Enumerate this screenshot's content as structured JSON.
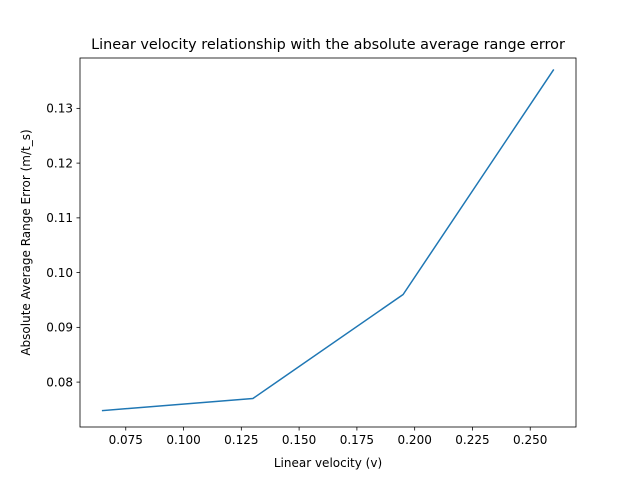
{
  "chart_data": {
    "type": "line",
    "title": "Linear velocity relationship with the absolute average range error",
    "xlabel": "Linear velocity (v)",
    "ylabel": "Absolute Average Range Error (m/t_s)",
    "xlim": [
      0.0552,
      0.2698
    ],
    "ylim": [
      0.0718,
      0.1392
    ],
    "xticks": [
      0.075,
      0.1,
      0.125,
      0.15,
      0.175,
      0.2,
      0.225,
      0.25
    ],
    "xtick_labels": [
      "0.075",
      "0.100",
      "0.125",
      "0.150",
      "0.175",
      "0.200",
      "0.225",
      "0.250"
    ],
    "yticks": [
      0.08,
      0.09,
      0.1,
      0.11,
      0.12,
      0.13
    ],
    "ytick_labels": [
      "0.08",
      "0.09",
      "0.10",
      "0.11",
      "0.12",
      "0.13"
    ],
    "grid": false,
    "series": [
      {
        "color": "#1f77b4",
        "x": [
          0.065,
          0.13,
          0.195,
          0.26
        ],
        "y": [
          0.0748,
          0.077,
          0.096,
          0.137
        ]
      }
    ]
  }
}
